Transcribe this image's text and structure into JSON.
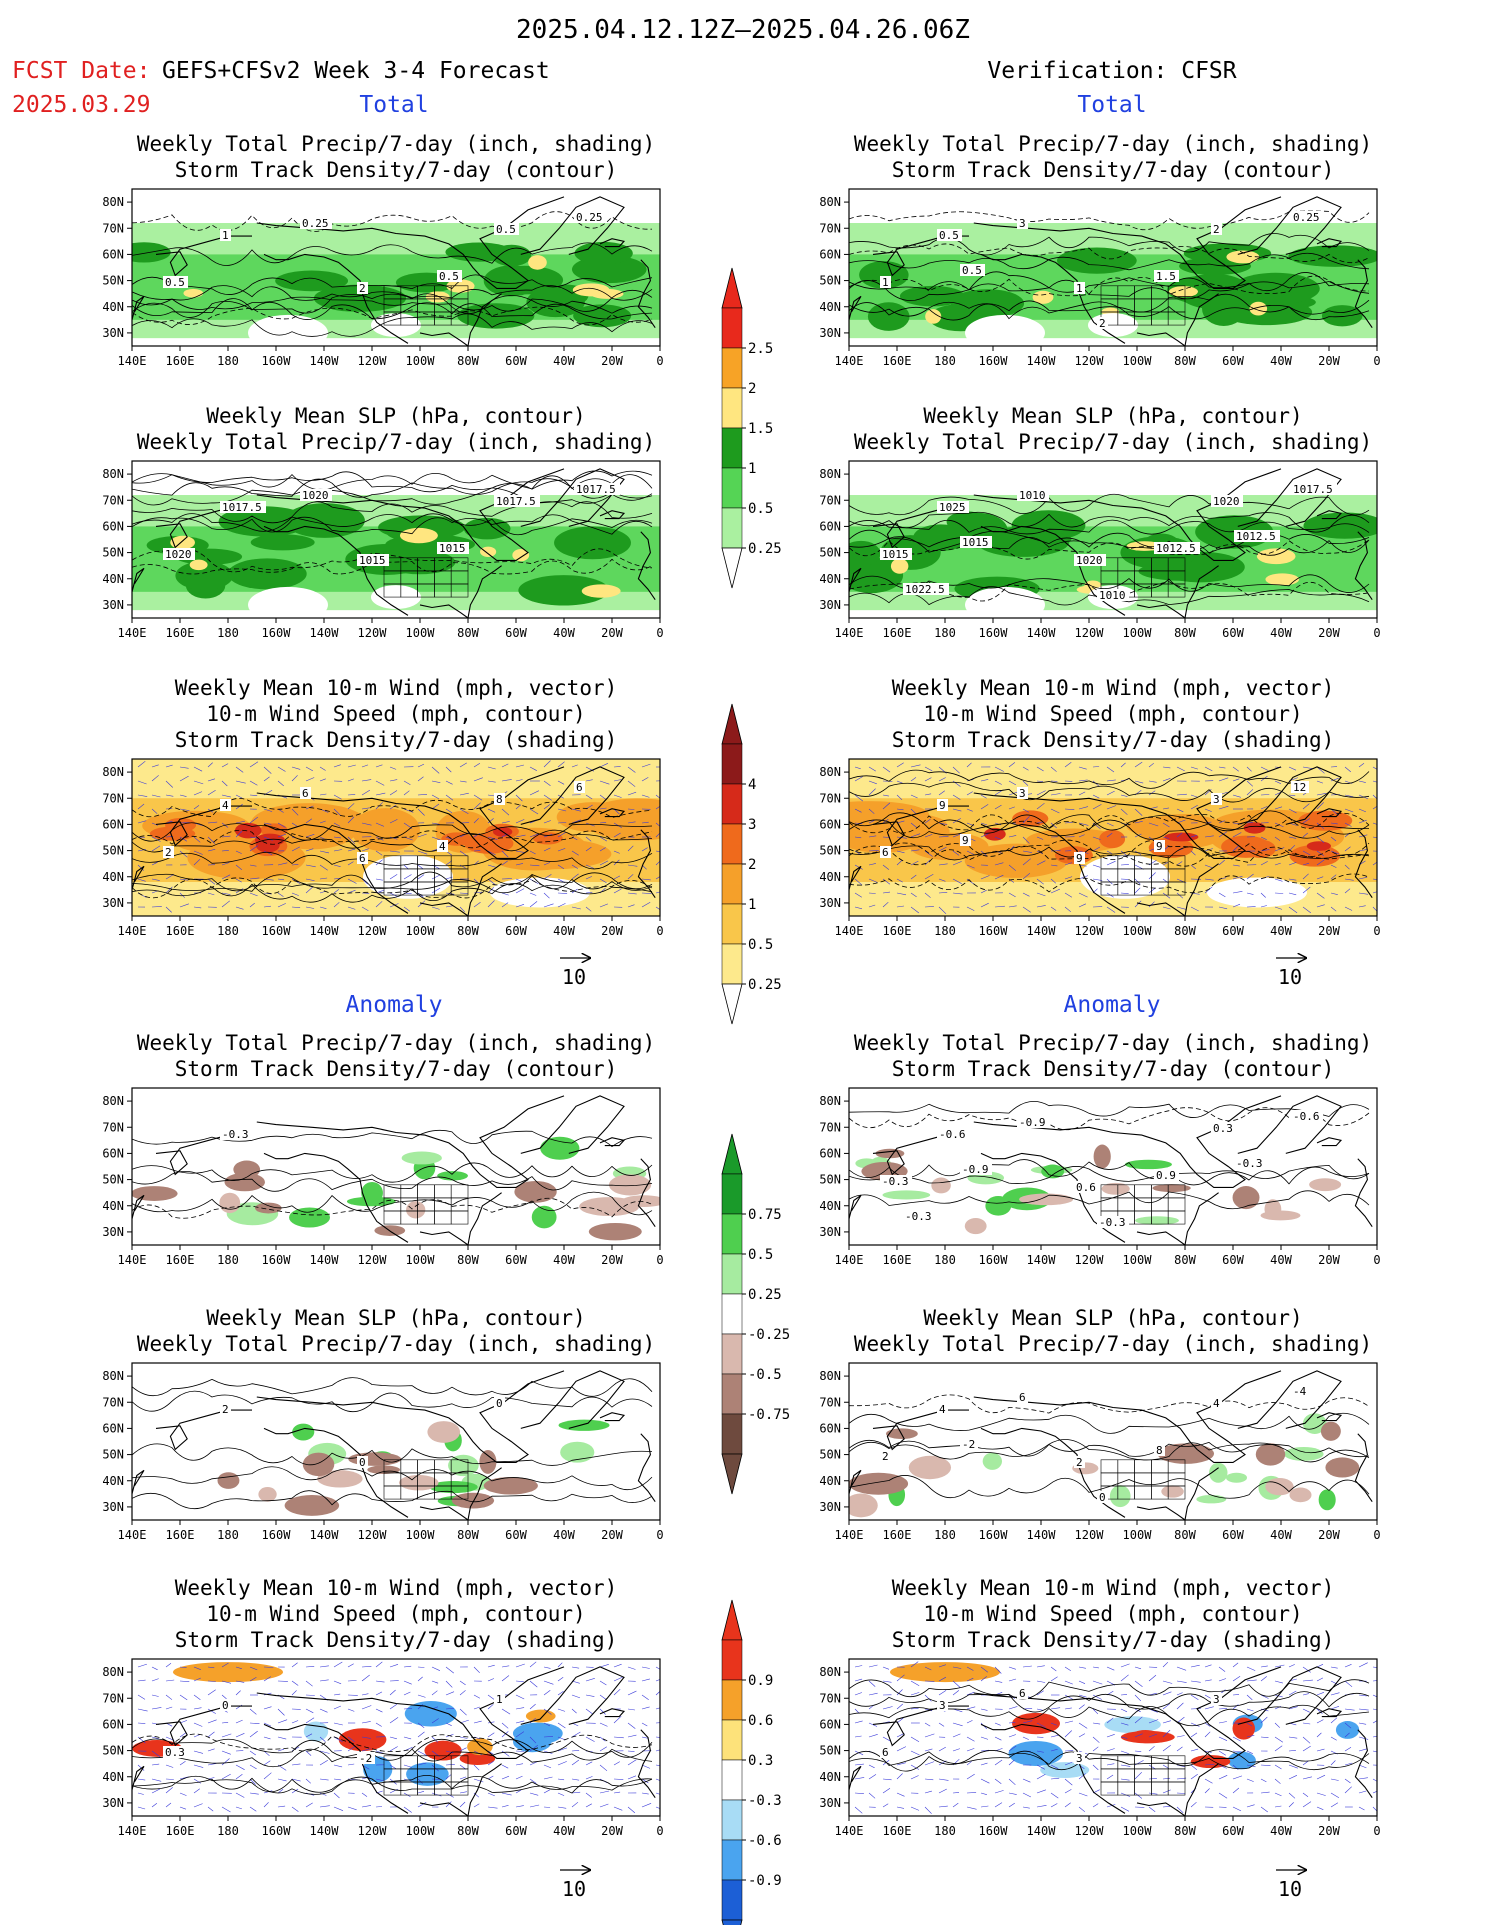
{
  "header": {
    "title": "2025.04.12.12Z–2025.04.26.06Z",
    "fcst_label": "FCST Date:",
    "fcst_model": "GEFS+CFSv2 Week 3-4 Forecast",
    "fcst_date": "2025.03.29",
    "verification": "Verification: CFSR"
  },
  "sections": {
    "total": "Total",
    "anomaly": "Anomaly"
  },
  "titles": {
    "precip_storm": [
      "Weekly Total Precip/7-day (inch, shading)",
      "Storm Track Density/7-day (contour)"
    ],
    "slp_precip": [
      "Weekly Mean SLP (hPa, contour)",
      "Weekly Total Precip/7-day (inch, shading)"
    ],
    "wind_storm": [
      "Weekly Mean 10-m Wind (mph, vector)",
      "10-m Wind Speed (mph, contour)",
      "Storm Track Density/7-day (shading)"
    ]
  },
  "axes": {
    "lon_labels": [
      "140E",
      "160E",
      "180",
      "160W",
      "140W",
      "120W",
      "100W",
      "80W",
      "60W",
      "40W",
      "20W",
      "0"
    ],
    "lat_labels": [
      "80N",
      "70N",
      "60N",
      "50N",
      "40N",
      "30N"
    ],
    "vector_ref": "10"
  },
  "colorbars": {
    "precip_total": {
      "labels": [
        "2.5",
        "2",
        "1.5",
        "1",
        "0.5",
        "0.25"
      ],
      "colors": [
        "#e8291c",
        "#f7a326",
        "#ffe680",
        "#1e9b1e",
        "#55d455",
        "#aaf0a0"
      ]
    },
    "storm_total": {
      "labels": [
        "4",
        "3",
        "2",
        "1",
        "0.5",
        "0.25"
      ],
      "colors": [
        "#8c1a1a",
        "#d62a1a",
        "#ef6a1c",
        "#f5a02a",
        "#f9c64a",
        "#fde98c"
      ]
    },
    "precip_anom": {
      "labels": [
        "0.75",
        "0.5",
        "0.25",
        "-0.25",
        "-0.5",
        "-0.75"
      ],
      "colors": [
        "#1a9a2a",
        "#4fcf4f",
        "#a6eba0",
        "#ffffff",
        "#d9b8ae",
        "#ad8276",
        "#6e4a3e"
      ]
    },
    "storm_anom": {
      "labels": [
        "0.9",
        "0.6",
        "0.3",
        "-0.3",
        "-0.6",
        "-0.9"
      ],
      "colors": [
        "#e8341c",
        "#f5a12a",
        "#fde27a",
        "#ffffff",
        "#a8dcf5",
        "#4aa4ef",
        "#1c5fd6"
      ]
    }
  },
  "panel_labels": {
    "fc_total_precip": [
      "1",
      "2",
      "0.5",
      "0.5",
      "0.25",
      "0.5",
      "0.25"
    ],
    "vf_total_precip": [
      "0.5",
      "1",
      "2",
      "1",
      "3",
      "1.5",
      "0.25",
      "0.5",
      "2"
    ],
    "fc_total_slp": [
      "1017.5",
      "1015",
      "1017.5",
      "1020",
      "1020",
      "1015",
      "1017.5"
    ],
    "vf_total_slp": [
      "1025",
      "1020",
      "1020",
      "1015",
      "1010",
      "1012.5",
      "1017.5",
      "1015",
      "1010",
      "1012.5",
      "1022.5"
    ],
    "fc_total_wind": [
      "4",
      "6",
      "8",
      "2",
      "6",
      "4",
      "6"
    ],
    "vf_total_wind": [
      "9",
      "9",
      "3",
      "6",
      "3",
      "9",
      "12",
      "9"
    ],
    "fc_anom_precip": [
      "-0.3"
    ],
    "vf_anom_precip": [
      "-0.6",
      "0.6",
      "0.3",
      "-0.3",
      "-0.9",
      "0.9",
      "-0.6",
      "-0.9",
      "-0.3",
      "-0.3",
      "-0.3"
    ],
    "fc_anom_slp": [
      "2",
      "0",
      "0"
    ],
    "vf_anom_slp": [
      "4",
      "2",
      "4",
      "2",
      "6",
      "8",
      "-4",
      "-2",
      "0"
    ],
    "fc_anom_wind": [
      "0",
      "-2",
      "1",
      "0.3"
    ],
    "vf_anom_wind": [
      "3",
      "3",
      "3",
      "6",
      "6"
    ]
  },
  "chart_data": {
    "type": "heatmap",
    "domain": {
      "lon": [
        "140E",
        "0"
      ],
      "lat": [
        "25N",
        "85N"
      ]
    },
    "panels": [
      {
        "id": "fc_total_precip",
        "column": "GEFS+CFSv2 forecast",
        "section": "Total",
        "shading": "Weekly Total Precip/7-day (inch)",
        "contour": "Storm Track Density/7-day",
        "scale": "precip_total"
      },
      {
        "id": "vf_total_precip",
        "column": "CFSR verification",
        "section": "Total",
        "shading": "Weekly Total Precip/7-day (inch)",
        "contour": "Storm Track Density/7-day",
        "scale": "precip_total"
      },
      {
        "id": "fc_total_slp",
        "column": "GEFS+CFSv2 forecast",
        "section": "Total",
        "shading": "Weekly Total Precip/7-day (inch)",
        "contour": "Weekly Mean SLP (hPa)",
        "scale": "precip_total"
      },
      {
        "id": "vf_total_slp",
        "column": "CFSR verification",
        "section": "Total",
        "shading": "Weekly Total Precip/7-day (inch)",
        "contour": "Weekly Mean SLP (hPa)",
        "scale": "precip_total"
      },
      {
        "id": "fc_total_wind",
        "column": "GEFS+CFSv2 forecast",
        "section": "Total",
        "shading": "Storm Track Density/7-day",
        "contour": "10-m Wind Speed (mph)",
        "vector": "Weekly Mean 10-m Wind (mph)",
        "scale": "storm_total"
      },
      {
        "id": "vf_total_wind",
        "column": "CFSR verification",
        "section": "Total",
        "shading": "Storm Track Density/7-day",
        "contour": "10-m Wind Speed (mph)",
        "vector": "Weekly Mean 10-m Wind (mph)",
        "scale": "storm_total"
      },
      {
        "id": "fc_anom_precip",
        "column": "GEFS+CFSv2 forecast",
        "section": "Anomaly",
        "shading": "Weekly Total Precip/7-day (inch)",
        "contour": "Storm Track Density/7-day",
        "scale": "precip_anom"
      },
      {
        "id": "vf_anom_precip",
        "column": "CFSR verification",
        "section": "Anomaly",
        "shading": "Weekly Total Precip/7-day (inch)",
        "contour": "Storm Track Density/7-day",
        "scale": "precip_anom"
      },
      {
        "id": "fc_anom_slp",
        "column": "GEFS+CFSv2 forecast",
        "section": "Anomaly",
        "shading": "Weekly Total Precip/7-day (inch)",
        "contour": "Weekly Mean SLP (hPa)",
        "scale": "precip_anom"
      },
      {
        "id": "vf_anom_slp",
        "column": "CFSR verification",
        "section": "Anomaly",
        "shading": "Weekly Total Precip/7-day (inch)",
        "contour": "Weekly Mean SLP (hPa)",
        "scale": "precip_anom"
      },
      {
        "id": "fc_anom_wind",
        "column": "GEFS+CFSv2 forecast",
        "section": "Anomaly",
        "shading": "Storm Track Density/7-day",
        "contour": "10-m Wind Speed (mph)",
        "vector": "Weekly Mean 10-m Wind (mph)",
        "scale": "storm_anom"
      },
      {
        "id": "vf_anom_wind",
        "column": "CFSR verification",
        "section": "Anomaly",
        "shading": "Storm Track Density/7-day",
        "contour": "10-m Wind Speed (mph)",
        "vector": "Weekly Mean 10-m Wind (mph)",
        "scale": "storm_anom"
      }
    ]
  }
}
